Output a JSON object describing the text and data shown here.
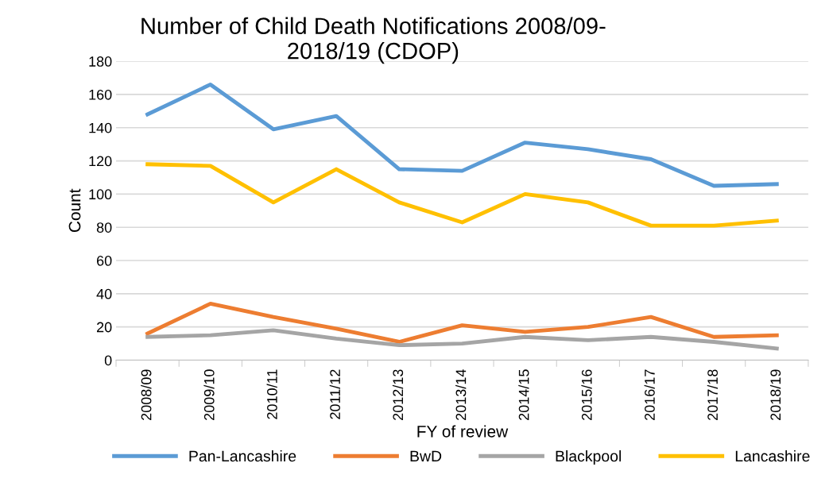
{
  "chart_data": {
    "type": "line",
    "title": "Number of Child Death Notifications 2008/09-\n2018/19 (CDOP)",
    "xlabel": "FY of review",
    "ylabel": "Count",
    "categories": [
      "2008/09",
      "2009/10",
      "2010/11",
      "2011/12",
      "2012/13",
      "2013/14",
      "2014/15",
      "2015/16",
      "2016/17",
      "2017/18",
      "2018/19"
    ],
    "series": [
      {
        "name": "Pan-Lancashire",
        "color": "#5b9bd5",
        "values": [
          148,
          166,
          139,
          147,
          115,
          114,
          131,
          127,
          121,
          105,
          106
        ]
      },
      {
        "name": "BwD",
        "color": "#ed7d31",
        "values": [
          16,
          34,
          26,
          19,
          11,
          21,
          17,
          20,
          26,
          14,
          15
        ]
      },
      {
        "name": "Blackpool",
        "color": "#a5a5a5",
        "values": [
          14,
          15,
          18,
          13,
          9,
          10,
          14,
          12,
          14,
          11,
          7
        ]
      },
      {
        "name": "Lancashire",
        "color": "#ffc000",
        "values": [
          118,
          117,
          95,
          115,
          95,
          83,
          100,
          95,
          81,
          81,
          84
        ]
      }
    ],
    "ylim": [
      0,
      180
    ],
    "yticks": [
      0,
      20,
      40,
      60,
      80,
      100,
      120,
      140,
      160,
      180
    ],
    "grid": "y",
    "legend": "bottom",
    "marker": "none",
    "line_style": "solid"
  }
}
